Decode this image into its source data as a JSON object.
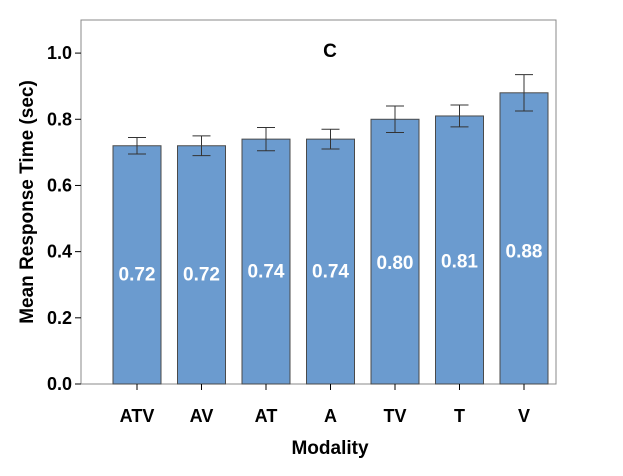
{
  "chart_data": {
    "type": "bar",
    "title": "C",
    "xlabel": "Modality",
    "ylabel": "Mean Response Time (sec)",
    "ylim": [
      0,
      1.1
    ],
    "yticks": [
      "0.0",
      "0.2",
      "0.4",
      "0.6",
      "0.8",
      "1.0"
    ],
    "categories": [
      "ATV",
      "AV",
      "AT",
      "A",
      "TV",
      "T",
      "V"
    ],
    "values": [
      0.72,
      0.72,
      0.74,
      0.74,
      0.8,
      0.81,
      0.88
    ],
    "value_labels": [
      "0.72",
      "0.72",
      "0.74",
      "0.74",
      "0.80",
      "0.81",
      "0.88"
    ],
    "error": [
      0.025,
      0.03,
      0.035,
      0.03,
      0.04,
      0.033,
      0.055
    ],
    "grid": false,
    "bar_color": "#6B9BCF",
    "bar_edge_color": "#4A4A4A",
    "error_bar_color": "#333333"
  }
}
